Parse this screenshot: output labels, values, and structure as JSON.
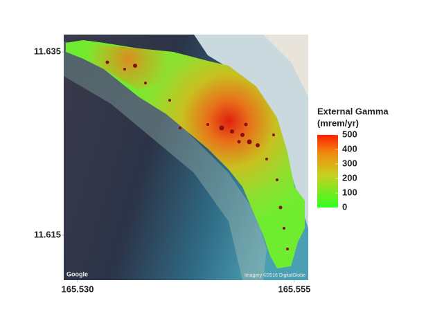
{
  "map": {
    "xlim": [
      165.5284,
      165.5566
    ],
    "ylim": [
      11.6101,
      11.6369
    ],
    "xticks": [
      {
        "value": 165.53,
        "label": "165.530"
      },
      {
        "value": 165.555,
        "label": "165.555"
      }
    ],
    "yticks": [
      11.635,
      11.615
    ],
    "legend": {
      "title": "External Gamma",
      "unit": "(mrem/yr)",
      "range": [
        0,
        500
      ],
      "ticks": [
        500,
        400,
        300,
        200,
        100,
        0
      ]
    },
    "attribution": {
      "left": "Google",
      "right": "Imagery ©2016 DigitalGlobe"
    }
  }
}
